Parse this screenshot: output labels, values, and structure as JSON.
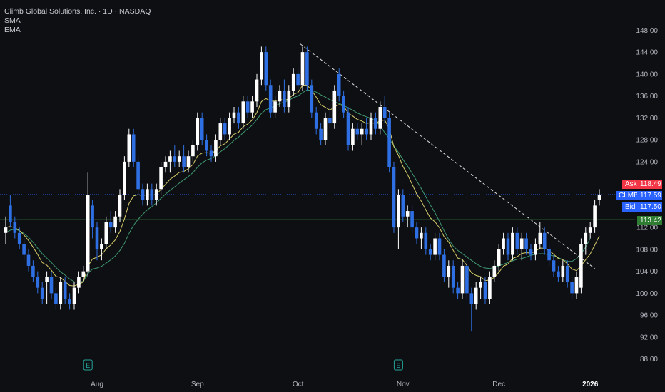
{
  "header": {
    "title": "Climb Global Solutions, Inc. · 1D · NASDAQ",
    "indicator_1": "SMA",
    "indicator_2": "EMA"
  },
  "quote": {
    "ask_label": "Ask",
    "ask_value": "118.49",
    "symbol": "CLMB",
    "last_value": "117.59",
    "bid_label": "Bid",
    "bid_value": "117.50",
    "line_value": "113.42"
  },
  "colors": {
    "background": "#0e0f13",
    "up_candle": "#ffffff",
    "down_candle": "#2f6fe4",
    "sma": "#d8cf6a",
    "ema": "#3f9a72",
    "ask": "#f23645",
    "bid": "#2962ff",
    "horizontal_line": "#43a047",
    "trendline": "#dddddd"
  },
  "chart_data": {
    "type": "candlestick",
    "y_axis": {
      "min": 86,
      "max": 150,
      "ticks": [
        148,
        144,
        140,
        136,
        132,
        128,
        124,
        112,
        108,
        104,
        100,
        96,
        92,
        88
      ]
    },
    "x_axis": {
      "labels": [
        {
          "label": "Aug",
          "bar": 20
        },
        {
          "label": "Sep",
          "bar": 42
        },
        {
          "label": "Oct",
          "bar": 64
        },
        {
          "label": "Nov",
          "bar": 87
        },
        {
          "label": "Dec",
          "bar": 108
        },
        {
          "label": "2026",
          "bar": 128
        }
      ]
    },
    "horizontal_line": 113.42,
    "earnings_markers": [
      {
        "label": "E",
        "bar": 18
      },
      {
        "label": "E",
        "bar": 86
      }
    ],
    "candles": [
      {
        "o": 111,
        "h": 114,
        "l": 109,
        "c": 112
      },
      {
        "o": 116,
        "h": 118,
        "l": 112,
        "c": 113
      },
      {
        "o": 113,
        "h": 114,
        "l": 110,
        "c": 111
      },
      {
        "o": 111,
        "h": 112,
        "l": 108,
        "c": 109
      },
      {
        "o": 109,
        "h": 110,
        "l": 106,
        "c": 107
      },
      {
        "o": 107,
        "h": 108,
        "l": 104,
        "c": 105
      },
      {
        "o": 105,
        "h": 106,
        "l": 102,
        "c": 103
      },
      {
        "o": 103,
        "h": 104,
        "l": 100,
        "c": 101
      },
      {
        "o": 101,
        "h": 102,
        "l": 98,
        "c": 99
      },
      {
        "o": 102,
        "h": 104,
        "l": 98,
        "c": 103
      },
      {
        "o": 103,
        "h": 104,
        "l": 99,
        "c": 100
      },
      {
        "o": 100,
        "h": 101,
        "l": 97,
        "c": 98
      },
      {
        "o": 98,
        "h": 103,
        "l": 97,
        "c": 102
      },
      {
        "o": 102,
        "h": 103,
        "l": 98,
        "c": 99
      },
      {
        "o": 99,
        "h": 100,
        "l": 97,
        "c": 98
      },
      {
        "o": 98,
        "h": 102,
        "l": 97,
        "c": 101
      },
      {
        "o": 101,
        "h": 104,
        "l": 100,
        "c": 103
      },
      {
        "o": 103,
        "h": 105,
        "l": 102,
        "c": 104
      },
      {
        "o": 104,
        "h": 122,
        "l": 103,
        "c": 118
      },
      {
        "o": 116,
        "h": 117,
        "l": 110,
        "c": 112
      },
      {
        "o": 112,
        "h": 113,
        "l": 106,
        "c": 108
      },
      {
        "o": 108,
        "h": 110,
        "l": 106,
        "c": 109
      },
      {
        "o": 109,
        "h": 114,
        "l": 108,
        "c": 113
      },
      {
        "o": 113,
        "h": 115,
        "l": 111,
        "c": 112
      },
      {
        "o": 112,
        "h": 115,
        "l": 111,
        "c": 114
      },
      {
        "o": 114,
        "h": 119,
        "l": 113,
        "c": 118
      },
      {
        "o": 118,
        "h": 125,
        "l": 117,
        "c": 124
      },
      {
        "o": 124,
        "h": 130,
        "l": 123,
        "c": 129
      },
      {
        "o": 129,
        "h": 130,
        "l": 123,
        "c": 124
      },
      {
        "o": 124,
        "h": 125,
        "l": 118,
        "c": 119
      },
      {
        "o": 119,
        "h": 120,
        "l": 116,
        "c": 117
      },
      {
        "o": 117,
        "h": 120,
        "l": 116,
        "c": 119
      },
      {
        "o": 119,
        "h": 120,
        "l": 116,
        "c": 117
      },
      {
        "o": 117,
        "h": 120,
        "l": 116,
        "c": 119
      },
      {
        "o": 119,
        "h": 124,
        "l": 118,
        "c": 123
      },
      {
        "o": 123,
        "h": 125,
        "l": 122,
        "c": 124
      },
      {
        "o": 124,
        "h": 126,
        "l": 122,
        "c": 125
      },
      {
        "o": 125,
        "h": 127,
        "l": 123,
        "c": 124
      },
      {
        "o": 124,
        "h": 126,
        "l": 123,
        "c": 125
      },
      {
        "o": 125,
        "h": 127,
        "l": 122,
        "c": 123
      },
      {
        "o": 123,
        "h": 126,
        "l": 122,
        "c": 125
      },
      {
        "o": 125,
        "h": 128,
        "l": 124,
        "c": 127
      },
      {
        "o": 127,
        "h": 133,
        "l": 126,
        "c": 132
      },
      {
        "o": 132,
        "h": 133,
        "l": 127,
        "c": 128
      },
      {
        "o": 128,
        "h": 129,
        "l": 125,
        "c": 126
      },
      {
        "o": 126,
        "h": 127,
        "l": 124,
        "c": 125
      },
      {
        "o": 125,
        "h": 129,
        "l": 124,
        "c": 128
      },
      {
        "o": 128,
        "h": 132,
        "l": 127,
        "c": 131
      },
      {
        "o": 131,
        "h": 132,
        "l": 128,
        "c": 129
      },
      {
        "o": 129,
        "h": 133,
        "l": 128,
        "c": 132
      },
      {
        "o": 132,
        "h": 134,
        "l": 131,
        "c": 133
      },
      {
        "o": 133,
        "h": 134,
        "l": 130,
        "c": 131
      },
      {
        "o": 131,
        "h": 136,
        "l": 130,
        "c": 135
      },
      {
        "o": 135,
        "h": 136,
        "l": 132,
        "c": 133
      },
      {
        "o": 133,
        "h": 136,
        "l": 132,
        "c": 135
      },
      {
        "o": 135,
        "h": 140,
        "l": 134,
        "c": 139
      },
      {
        "o": 139,
        "h": 145,
        "l": 138,
        "c": 144
      },
      {
        "o": 144,
        "h": 145,
        "l": 137,
        "c": 138
      },
      {
        "o": 138,
        "h": 139,
        "l": 132,
        "c": 133
      },
      {
        "o": 133,
        "h": 136,
        "l": 132,
        "c": 135
      },
      {
        "o": 135,
        "h": 138,
        "l": 134,
        "c": 137
      },
      {
        "o": 137,
        "h": 139,
        "l": 133,
        "c": 134
      },
      {
        "o": 134,
        "h": 138,
        "l": 133,
        "c": 137
      },
      {
        "o": 137,
        "h": 141,
        "l": 136,
        "c": 140
      },
      {
        "o": 140,
        "h": 141,
        "l": 137,
        "c": 138
      },
      {
        "o": 138,
        "h": 145,
        "l": 137,
        "c": 144
      },
      {
        "o": 144,
        "h": 145,
        "l": 137,
        "c": 138
      },
      {
        "o": 138,
        "h": 139,
        "l": 132,
        "c": 133
      },
      {
        "o": 133,
        "h": 134,
        "l": 129,
        "c": 130
      },
      {
        "o": 130,
        "h": 131,
        "l": 127,
        "c": 128
      },
      {
        "o": 128,
        "h": 133,
        "l": 127,
        "c": 132
      },
      {
        "o": 132,
        "h": 134,
        "l": 130,
        "c": 131
      },
      {
        "o": 131,
        "h": 138,
        "l": 130,
        "c": 137
      },
      {
        "o": 140,
        "h": 141,
        "l": 135,
        "c": 136
      },
      {
        "o": 136,
        "h": 137,
        "l": 132,
        "c": 133
      },
      {
        "o": 133,
        "h": 134,
        "l": 126,
        "c": 127
      },
      {
        "o": 127,
        "h": 131,
        "l": 126,
        "c": 130
      },
      {
        "o": 130,
        "h": 131,
        "l": 128,
        "c": 129
      },
      {
        "o": 129,
        "h": 131,
        "l": 127,
        "c": 130
      },
      {
        "o": 130,
        "h": 132,
        "l": 128,
        "c": 129
      },
      {
        "o": 129,
        "h": 133,
        "l": 128,
        "c": 132
      },
      {
        "o": 132,
        "h": 133,
        "l": 129,
        "c": 130
      },
      {
        "o": 130,
        "h": 135,
        "l": 129,
        "c": 134
      },
      {
        "o": 134,
        "h": 136,
        "l": 131,
        "c": 132
      },
      {
        "o": 132,
        "h": 133,
        "l": 122,
        "c": 123
      },
      {
        "o": 123,
        "h": 124,
        "l": 111,
        "c": 112
      },
      {
        "o": 112,
        "h": 119,
        "l": 108,
        "c": 118
      },
      {
        "o": 118,
        "h": 119,
        "l": 113,
        "c": 114
      },
      {
        "o": 114,
        "h": 116,
        "l": 112,
        "c": 115
      },
      {
        "o": 115,
        "h": 116,
        "l": 111,
        "c": 112
      },
      {
        "o": 112,
        "h": 113,
        "l": 109,
        "c": 110
      },
      {
        "o": 110,
        "h": 112,
        "l": 108,
        "c": 111
      },
      {
        "o": 111,
        "h": 112,
        "l": 107,
        "c": 108
      },
      {
        "o": 108,
        "h": 109,
        "l": 106,
        "c": 107
      },
      {
        "o": 107,
        "h": 111,
        "l": 106,
        "c": 110
      },
      {
        "o": 110,
        "h": 111,
        "l": 106,
        "c": 107
      },
      {
        "o": 107,
        "h": 108,
        "l": 102,
        "c": 103
      },
      {
        "o": 103,
        "h": 106,
        "l": 101,
        "c": 105
      },
      {
        "o": 105,
        "h": 106,
        "l": 100,
        "c": 101
      },
      {
        "o": 101,
        "h": 102,
        "l": 99,
        "c": 100
      },
      {
        "o": 100,
        "h": 106,
        "l": 99,
        "c": 105
      },
      {
        "o": 105,
        "h": 106,
        "l": 99,
        "c": 100
      },
      {
        "o": 100,
        "h": 101,
        "l": 93,
        "c": 98
      },
      {
        "o": 98,
        "h": 102,
        "l": 97,
        "c": 101
      },
      {
        "o": 101,
        "h": 103,
        "l": 99,
        "c": 102
      },
      {
        "o": 102,
        "h": 103,
        "l": 98,
        "c": 99
      },
      {
        "o": 99,
        "h": 104,
        "l": 98,
        "c": 103
      },
      {
        "o": 103,
        "h": 106,
        "l": 102,
        "c": 105
      },
      {
        "o": 105,
        "h": 109,
        "l": 104,
        "c": 108
      },
      {
        "o": 108,
        "h": 111,
        "l": 107,
        "c": 110
      },
      {
        "o": 110,
        "h": 111,
        "l": 106,
        "c": 107
      },
      {
        "o": 107,
        "h": 112,
        "l": 106,
        "c": 111
      },
      {
        "o": 111,
        "h": 112,
        "l": 107,
        "c": 108
      },
      {
        "o": 108,
        "h": 111,
        "l": 106,
        "c": 110
      },
      {
        "o": 110,
        "h": 111,
        "l": 107,
        "c": 108
      },
      {
        "o": 108,
        "h": 109,
        "l": 106,
        "c": 107
      },
      {
        "o": 107,
        "h": 110,
        "l": 106,
        "c": 109
      },
      {
        "o": 109,
        "h": 113,
        "l": 108,
        "c": 111
      },
      {
        "o": 111,
        "h": 112,
        "l": 107,
        "c": 108
      },
      {
        "o": 108,
        "h": 109,
        "l": 105,
        "c": 106
      },
      {
        "o": 106,
        "h": 107,
        "l": 103,
        "c": 104
      },
      {
        "o": 104,
        "h": 105,
        "l": 102,
        "c": 103
      },
      {
        "o": 103,
        "h": 106,
        "l": 102,
        "c": 105
      },
      {
        "o": 105,
        "h": 106,
        "l": 101,
        "c": 102
      },
      {
        "o": 102,
        "h": 103,
        "l": 99,
        "c": 100
      },
      {
        "o": 100,
        "h": 104,
        "l": 99,
        "c": 103
      },
      {
        "o": 101,
        "h": 110,
        "l": 100,
        "c": 109
      },
      {
        "o": 109,
        "h": 112,
        "l": 107,
        "c": 111
      },
      {
        "o": 111,
        "h": 113,
        "l": 110,
        "c": 112
      },
      {
        "o": 112,
        "h": 117,
        "l": 111,
        "c": 116
      },
      {
        "o": 117,
        "h": 119,
        "l": 116,
        "c": 118
      }
    ],
    "sma": [
      111,
      111.5,
      111.7,
      111.4,
      110.9,
      110.2,
      109.3,
      108.2,
      107.2,
      106.4,
      105.6,
      104.7,
      103.9,
      103.3,
      102.6,
      102.1,
      102,
      102.2,
      103.6,
      104.4,
      104.6,
      104.9,
      105.5,
      106.1,
      106.8,
      107.8,
      109.1,
      110.9,
      112.4,
      113.5,
      114.4,
      115.2,
      115.8,
      116.5,
      117.3,
      118.1,
      118.8,
      119.4,
      120.1,
      120.7,
      121.3,
      122,
      123,
      123.8,
      124.3,
      124.6,
      125.1,
      125.8,
      126.4,
      127.1,
      127.9,
      128.5,
      129.3,
      130,
      130.7,
      131.7,
      132.8,
      133.5,
      133.8,
      134.2,
      134.6,
      134.9,
      135.2,
      135.7,
      136,
      136.6,
      137.1,
      137,
      136.7,
      136.2,
      135.8,
      135.3,
      135,
      134.6,
      134.3,
      133.8,
      133.4,
      132.9,
      132.5,
      132.2,
      131.9,
      131.4,
      130.6,
      129.3,
      128.2,
      126.9,
      125.7,
      124.4,
      123.2,
      121.9,
      120.5,
      119.1,
      117.6,
      116.1,
      114.7,
      113.1,
      111.4,
      109.8,
      108.6,
      107.8,
      107.2,
      106.6,
      106,
      105.4,
      104.9,
      104.6,
      104.5,
      104.7,
      105,
      105.3,
      105.6,
      105.9,
      106.2,
      106.3,
      106.6,
      106.9,
      107.1,
      107.2,
      107.2,
      107,
      106.8,
      106.5,
      106.1,
      105.8,
      105.8,
      106.3,
      107.2,
      108.4,
      110
    ]
  }
}
